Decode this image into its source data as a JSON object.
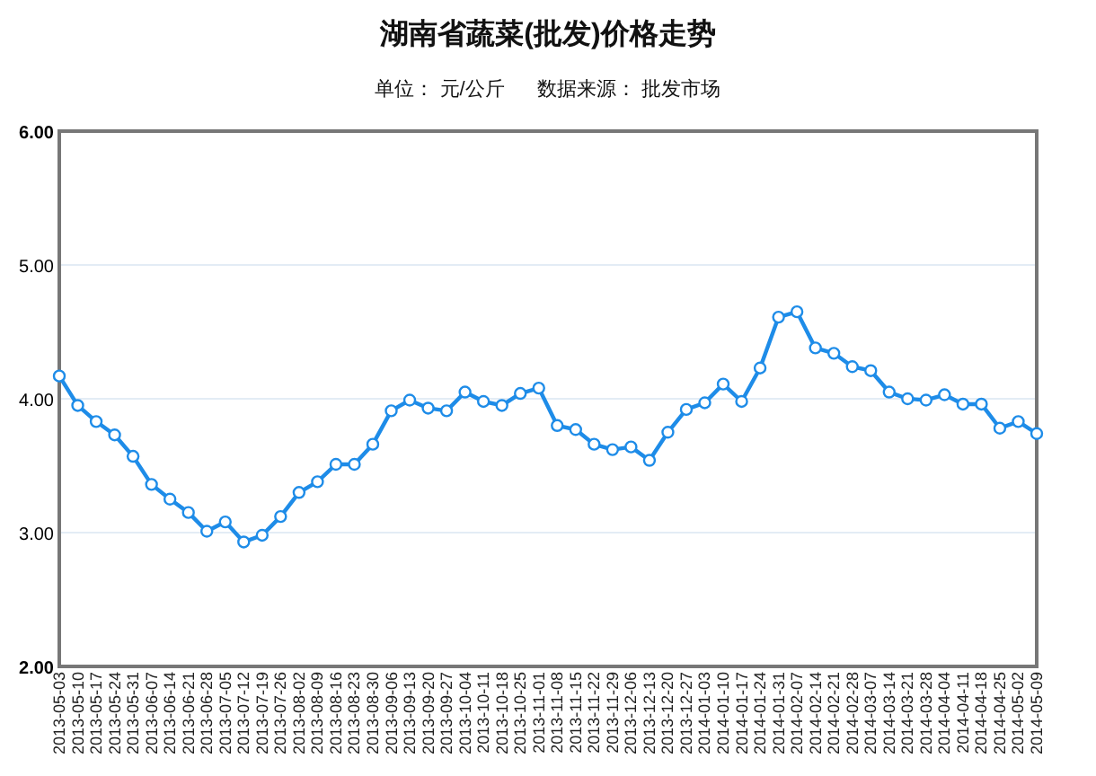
{
  "chart_data": {
    "type": "line",
    "title": "湖南省蔬菜(批发)价格走势",
    "subtitle": "单位： 元/公斤      数据来源： 批发市场",
    "categories": [
      "2013-05-03",
      "2013-05-10",
      "2013-05-17",
      "2013-05-24",
      "2013-05-31",
      "2013-06-07",
      "2013-06-14",
      "2013-06-21",
      "2013-06-28",
      "2013-07-05",
      "2013-07-12",
      "2013-07-19",
      "2013-07-26",
      "2013-08-02",
      "2013-08-09",
      "2013-08-16",
      "2013-08-23",
      "2013-08-30",
      "2013-09-06",
      "2013-09-13",
      "2013-09-20",
      "2013-09-27",
      "2013-10-04",
      "2013-10-11",
      "2013-10-18",
      "2013-10-25",
      "2013-11-01",
      "2013-11-08",
      "2013-11-15",
      "2013-11-22",
      "2013-11-29",
      "2013-12-06",
      "2013-12-13",
      "2013-12-20",
      "2013-12-27",
      "2014-01-03",
      "2014-01-10",
      "2014-01-17",
      "2014-01-24",
      "2014-01-31",
      "2014-02-07",
      "2014-02-14",
      "2014-02-21",
      "2014-02-28",
      "2014-03-07",
      "2014-03-14",
      "2014-03-21",
      "2014-03-28",
      "2014-04-04",
      "2014-04-11",
      "2014-04-18",
      "2014-04-25",
      "2014-05-02",
      "2014-05-09"
    ],
    "series": [
      {
        "color": "#1e8ce8",
        "values": [
          4.17,
          3.95,
          3.83,
          3.73,
          3.57,
          3.36,
          3.25,
          3.15,
          3.01,
          3.08,
          2.93,
          2.98,
          3.12,
          3.3,
          3.38,
          3.51,
          3.51,
          3.66,
          3.91,
          3.99,
          3.93,
          3.91,
          4.05,
          3.98,
          3.95,
          4.04,
          4.08,
          3.8,
          3.77,
          3.66,
          3.62,
          3.64,
          3.54,
          3.75,
          3.92,
          3.97,
          4.11,
          3.98,
          4.23,
          4.61,
          4.65,
          4.38,
          4.34,
          4.24,
          4.21,
          4.05,
          4.0,
          3.99,
          4.03,
          3.96,
          3.96,
          3.78,
          3.83,
          3.74
        ]
      }
    ],
    "ylim": [
      2,
      6
    ],
    "yticks": [
      {
        "value": 2,
        "label": "2.00"
      },
      {
        "value": 3,
        "label": "3.00"
      },
      {
        "value": 4,
        "label": "4.00"
      },
      {
        "value": 5,
        "label": "5.00"
      },
      {
        "value": 6,
        "label": "6.00"
      }
    ],
    "grid": "y",
    "marker": "circle",
    "line_style": "solid"
  }
}
